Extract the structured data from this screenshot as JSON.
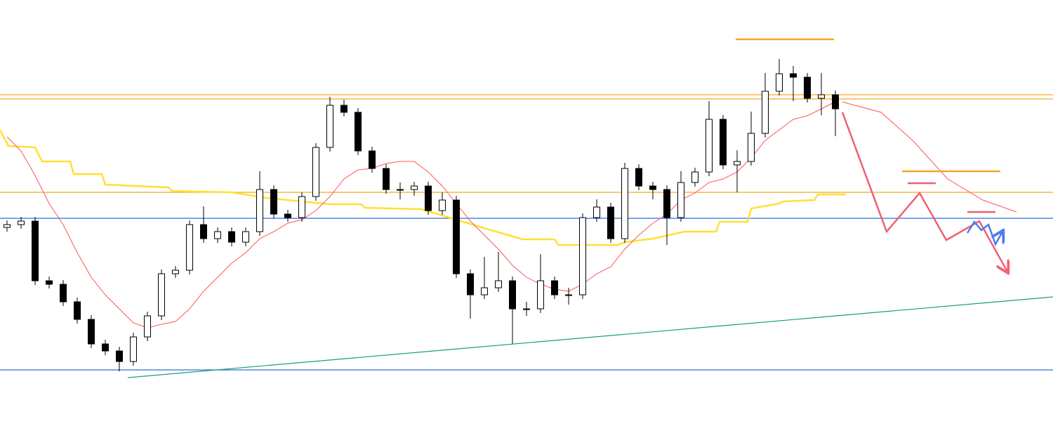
{
  "chart_data": {
    "type": "candlestick",
    "xlim": [
      -0.5,
      74.5
    ],
    "ylim": [
      0,
      624
    ],
    "up_color": "#ffffff",
    "down_color": "#000000",
    "open": [
      300,
      304,
      309,
      224,
      219,
      194,
      169,
      134,
      124,
      109,
      144,
      174,
      234,
      239,
      304,
      284,
      294,
      279,
      294,
      354,
      319,
      314,
      344,
      414,
      474,
      464,
      409,
      384,
      354,
      354,
      359,
      324,
      339,
      234,
      204,
      214,
      224,
      184,
      184,
      224,
      204,
      204,
      314,
      329,
      284,
      384,
      359,
      354,
      314,
      364,
      379,
      454,
      389,
      394,
      434,
      494,
      519,
      514,
      484,
      489
    ],
    "high": [
      310,
      315,
      315,
      230,
      225,
      200,
      175,
      140,
      130,
      150,
      180,
      240,
      245,
      310,
      330,
      300,
      300,
      300,
      380,
      360,
      325,
      350,
      420,
      486,
      482,
      470,
      415,
      390,
      364,
      365,
      365,
      350,
      345,
      240,
      258,
      265,
      230,
      194,
      262,
      230,
      214,
      320,
      340,
      335,
      392,
      390,
      365,
      360,
      380,
      385,
      480,
      460,
      410,
      465,
      520,
      540,
      530,
      520,
      520,
      495
    ],
    "low": [
      294,
      298,
      218,
      213,
      188,
      163,
      128,
      118,
      95,
      103,
      138,
      168,
      228,
      233,
      278,
      278,
      273,
      273,
      288,
      313,
      308,
      308,
      338,
      408,
      458,
      403,
      378,
      348,
      340,
      345,
      318,
      318,
      228,
      170,
      198,
      208,
      134,
      174,
      178,
      198,
      190,
      198,
      308,
      278,
      278,
      353,
      340,
      275,
      308,
      358,
      373,
      383,
      350,
      388,
      428,
      488,
      480,
      478,
      460,
      430
    ],
    "close": [
      304,
      309,
      224,
      219,
      194,
      169,
      134,
      124,
      109,
      144,
      174,
      234,
      239,
      304,
      284,
      294,
      279,
      294,
      354,
      319,
      314,
      344,
      414,
      474,
      464,
      409,
      384,
      354,
      354,
      359,
      324,
      339,
      234,
      204,
      214,
      224,
      184,
      184,
      224,
      204,
      204,
      314,
      329,
      284,
      384,
      359,
      354,
      314,
      364,
      379,
      454,
      389,
      394,
      434,
      494,
      519,
      514,
      484,
      489,
      469
    ],
    "moving_average": {
      "color": "#ff5555",
      "values": [
        429,
        409,
        374,
        334,
        304,
        264,
        229,
        204,
        184,
        164,
        157,
        162,
        166,
        184,
        209,
        229,
        249,
        264,
        284,
        294,
        306,
        311,
        324,
        344,
        369,
        382,
        384,
        391,
        394,
        394,
        379,
        359,
        334,
        309,
        289,
        269,
        246,
        229,
        219,
        212,
        209,
        219,
        234,
        244,
        269,
        289,
        306,
        319,
        339,
        349,
        364,
        369,
        379,
        399,
        424,
        439,
        454,
        459,
        469,
        479
      ]
    },
    "levels": [
      {
        "color": "#f5a623",
        "value": 489
      },
      {
        "color": "#f5a623",
        "value": 483
      },
      {
        "color": "#f5a623",
        "value": 350
      },
      {
        "color": "#2f6fd6",
        "value": 313
      },
      {
        "color": "#2f6fd6",
        "value": 97
      }
    ],
    "drawings": [
      {
        "color": "#1a9e7a",
        "width": 1.2,
        "x": [
          8.6,
          74.5
        ],
        "y": [
          86,
          201
        ]
      },
      {
        "color": "#ffe033",
        "width": 2.5,
        "x": [
          -0.5,
          0.1,
          2,
          2.5,
          4.5,
          4.75,
          6.75,
          7,
          11.5,
          11.75,
          16,
          18.5,
          21.5,
          23,
          25.25,
          25.5,
          29.5,
          31.5,
          32.5,
          34.5,
          36.75,
          39,
          39.25,
          43.5,
          44,
          46,
          48.25,
          50.5,
          50.75,
          52.75,
          53,
          55,
          55.25,
          57.5,
          57.75,
          59.75
        ],
        "y": [
          439,
          416,
          414,
          394,
          394,
          376,
          376,
          361,
          357,
          352,
          350,
          342,
          336,
          333,
          333,
          328,
          326,
          314,
          308,
          296,
          283,
          283,
          275,
          275,
          279,
          284,
          294,
          294,
          308,
          308,
          327,
          334,
          337,
          339,
          347,
          347
        ]
      },
      {
        "color": "#ff5555",
        "width": 1,
        "x": [
          59.5,
          60,
          62.25,
          64.5,
          67,
          69.5,
          71.9
        ],
        "y": [
          479,
          476,
          464,
          424,
          369,
          339,
          322
        ]
      },
      {
        "color": "#f5a623",
        "width": 2.5,
        "x": [
          51.9,
          58.9
        ],
        "y": [
          568,
          568
        ]
      },
      {
        "color": "#f5a623",
        "width": 2.5,
        "x": [
          63.75,
          70.75
        ],
        "y": [
          380,
          380
        ]
      },
      {
        "color": "#f06070",
        "width": 2.5,
        "x": [
          64.15,
          66.15
        ],
        "y": [
          363,
          363
        ]
      },
      {
        "color": "#f06070",
        "width": 2.5,
        "x": [
          68.4,
          70.4
        ],
        "y": [
          322,
          322
        ]
      },
      {
        "color": "#f06070",
        "width": 2.5,
        "arrow": true,
        "x": [
          59.5,
          62.65,
          65,
          66.9,
          69.25,
          71.25
        ],
        "y": [
          464,
          294,
          349,
          282,
          309,
          237
        ]
      },
      {
        "color": "#4a7cf0",
        "width": 2.5,
        "arrow": true,
        "x": [
          68.4,
          68.9,
          69.4,
          69.9,
          70.4,
          70.9
        ],
        "y": [
          292,
          308,
          296,
          304,
          276,
          294
        ]
      }
    ]
  }
}
